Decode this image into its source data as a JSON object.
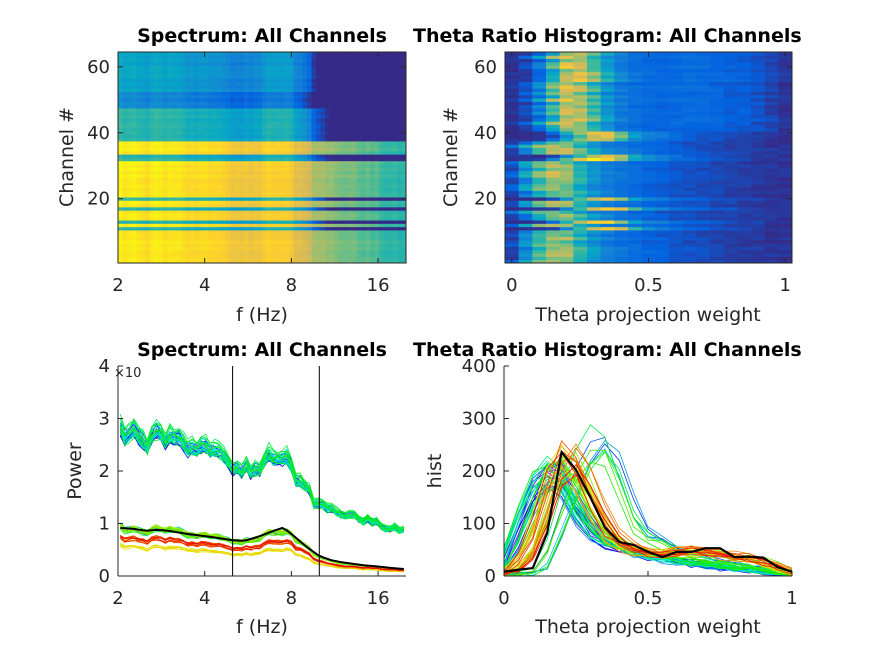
{
  "chart_data": [
    {
      "type": "heatmap",
      "title": "Spectrum: All Channels",
      "xlabel": "f (Hz)",
      "ylabel": "Channel #",
      "x_scale": "log2",
      "xlim": [
        2,
        20
      ],
      "ylim": [
        0.5,
        64.5
      ],
      "xticks": [
        2,
        4,
        8,
        16
      ],
      "xtick_labels": [
        "2",
        "4",
        "8",
        "16"
      ],
      "yticks": [
        20,
        40,
        60
      ],
      "ytick_labels": [
        "20",
        "40",
        "60"
      ],
      "colormap": "parula",
      "color_scale": "log",
      "clim": [
        0.3,
        3
      ]
    },
    {
      "type": "heatmap",
      "title": "Theta Ratio Histogram: All Channels",
      "xlabel": "Theta projection weight",
      "ylabel": "Channel #",
      "xlim": [
        -0.025,
        1.025
      ],
      "ylim": [
        0.5,
        64.5
      ],
      "xticks": [
        0,
        0.5,
        1
      ],
      "xtick_labels": [
        "0",
        "0.5",
        "1"
      ],
      "yticks": [
        20,
        40,
        60
      ],
      "ytick_labels": [
        "20",
        "40",
        "60"
      ],
      "colormap": "parula",
      "clim": [
        0,
        300
      ]
    },
    {
      "type": "line",
      "title": "Spectrum: All Channels",
      "xlabel": "f (Hz)",
      "ylabel": "Power",
      "y_exponent_label": "×10",
      "x_scale": "log2",
      "xlim": [
        2,
        20
      ],
      "ylim": [
        0,
        4
      ],
      "xticks": [
        2,
        4,
        8,
        16
      ],
      "xtick_labels": [
        "2",
        "4",
        "8",
        "16"
      ],
      "yticks": [
        0,
        1,
        2,
        3,
        4
      ],
      "ytick_labels": [
        "0",
        "1",
        "2",
        "3",
        "4"
      ],
      "vertical_lines": [
        5,
        10
      ],
      "x": [
        2,
        2.25,
        2.5,
        2.75,
        3,
        3.5,
        4,
        4.5,
        5,
        5.5,
        6,
        6.5,
        7,
        7.5,
        8,
        9,
        10,
        11,
        12,
        14,
        16,
        18,
        20
      ],
      "series": [
        {
          "channels": [
            1,
            2,
            3,
            4,
            5,
            6,
            7,
            8,
            9,
            10,
            12,
            14,
            15,
            16,
            18,
            19,
            21,
            22,
            23,
            24,
            25,
            26,
            27,
            28,
            29,
            30,
            31,
            34,
            35,
            36,
            37
          ],
          "values": [
            2.7,
            2.75,
            2.6,
            2.65,
            2.55,
            2.5,
            2.4,
            2.3,
            2.15,
            2.05,
            2.1,
            2.2,
            2.3,
            2.4,
            2.05,
            1.65,
            1.35,
            1.25,
            1.2,
            1.1,
            1.0,
            0.92,
            0.85
          ]
        },
        {
          "channels": [
            11,
            13,
            17,
            20,
            32,
            33,
            38,
            39,
            40,
            41,
            42,
            43,
            44,
            45,
            46,
            47
          ],
          "values": [
            0.9,
            0.88,
            0.85,
            0.87,
            0.85,
            0.8,
            0.75,
            0.72,
            0.68,
            0.66,
            0.72,
            0.78,
            0.85,
            0.88,
            0.78,
            0.55,
            0.35,
            0.28,
            0.24,
            0.2,
            0.17,
            0.14,
            0.12
          ]
        },
        {
          "channels": [
            48,
            49,
            50,
            51,
            52
          ],
          "values": [
            0.56,
            0.55,
            0.53,
            0.53,
            0.52,
            0.5,
            0.47,
            0.44,
            0.42,
            0.41,
            0.44,
            0.47,
            0.5,
            0.52,
            0.47,
            0.33,
            0.22,
            0.18,
            0.16,
            0.13,
            0.11,
            0.09,
            0.08
          ]
        },
        {
          "channels": [
            53,
            54,
            55,
            56,
            57,
            58,
            59,
            60,
            61,
            62,
            63,
            64
          ],
          "values": [
            0.7,
            0.69,
            0.67,
            0.68,
            0.66,
            0.62,
            0.59,
            0.56,
            0.53,
            0.52,
            0.56,
            0.6,
            0.65,
            0.68,
            0.6,
            0.43,
            0.27,
            0.22,
            0.19,
            0.16,
            0.14,
            0.12,
            0.1
          ]
        }
      ],
      "mean_line": {
        "color": "#000000",
        "values": [
          0.92,
          0.9,
          0.86,
          0.88,
          0.86,
          0.8,
          0.76,
          0.72,
          0.68,
          0.67,
          0.73,
          0.8,
          0.87,
          0.92,
          0.8,
          0.56,
          0.38,
          0.3,
          0.26,
          0.21,
          0.18,
          0.15,
          0.13
        ]
      }
    },
    {
      "type": "line",
      "title": "Theta Ratio Histogram: All Channels",
      "xlabel": "Theta projection weight",
      "ylabel": "hist",
      "xlim": [
        0,
        1
      ],
      "ylim": [
        0,
        400
      ],
      "xticks": [
        0,
        0.5,
        1
      ],
      "xtick_labels": [
        "0",
        "0.5",
        "1"
      ],
      "yticks": [
        0,
        100,
        200,
        300,
        400
      ],
      "ytick_labels": [
        "0",
        "100",
        "200",
        "300",
        "400"
      ],
      "x": [
        0,
        0.05,
        0.1,
        0.15,
        0.2,
        0.25,
        0.3,
        0.35,
        0.4,
        0.45,
        0.5,
        0.55,
        0.6,
        0.65,
        0.7,
        0.75,
        0.8,
        0.85,
        0.9,
        0.95,
        1
      ],
      "series": [
        {
          "channels": [
            1,
            2,
            3,
            4,
            5,
            6,
            7,
            8,
            9,
            10,
            12,
            14,
            15,
            16,
            18,
            19,
            21,
            22,
            23,
            24,
            25,
            26,
            27,
            28,
            29,
            30,
            31,
            34,
            35,
            36,
            37
          ],
          "values": [
            15,
            90,
            160,
            200,
            195,
            130,
            90,
            65,
            55,
            48,
            40,
            35,
            30,
            25,
            22,
            18,
            15,
            12,
            10,
            8,
            5
          ]
        },
        {
          "channels": [
            11,
            13,
            17,
            20,
            32,
            33,
            38,
            39,
            40
          ],
          "values": [
            3,
            2,
            5,
            30,
            110,
            190,
            250,
            270,
            200,
            110,
            75,
            70,
            50,
            40,
            35,
            30,
            25,
            20,
            15,
            10,
            5
          ]
        },
        {
          "channels": [
            41,
            42,
            43,
            44,
            45,
            46,
            47,
            48,
            49,
            50,
            51,
            52,
            53,
            54,
            55,
            56,
            57,
            58,
            59,
            60,
            61,
            62,
            63,
            64
          ],
          "values": [
            5,
            20,
            60,
            150,
            235,
            210,
            150,
            90,
            60,
            50,
            45,
            40,
            45,
            48,
            45,
            42,
            35,
            35,
            30,
            15,
            5
          ]
        }
      ],
      "mean_line": {
        "color": "#000000",
        "values": [
          8,
          12,
          15,
          82,
          236,
          202,
          150,
          93,
          65,
          59,
          46,
          36,
          46,
          46,
          53,
          53,
          36,
          37,
          35,
          17,
          8
        ]
      }
    }
  ]
}
